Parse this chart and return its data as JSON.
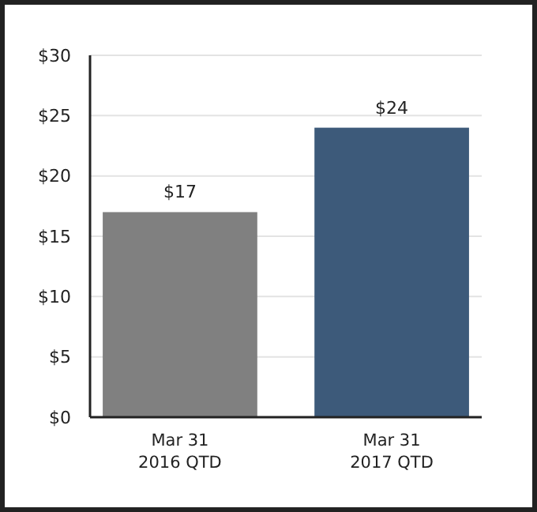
{
  "chart_data": {
    "type": "bar",
    "categories": [
      "Mar 31\n2016 QTD",
      "Mar 31\n2017 QTD"
    ],
    "values": [
      17,
      24
    ],
    "colors": [
      "#808080",
      "#3d5a7a"
    ],
    "value_labels": [
      "$17",
      "$24"
    ],
    "ylim": [
      0,
      30
    ],
    "yticks": [
      {
        "value": 0,
        "label": "$0"
      },
      {
        "value": 5,
        "label": "$5"
      },
      {
        "value": 10,
        "label": "$10"
      },
      {
        "value": 15,
        "label": "$15"
      },
      {
        "value": 20,
        "label": "$20"
      },
      {
        "value": 25,
        "label": "$25"
      },
      {
        "value": 30,
        "label": "$30"
      }
    ],
    "grid": "y"
  }
}
